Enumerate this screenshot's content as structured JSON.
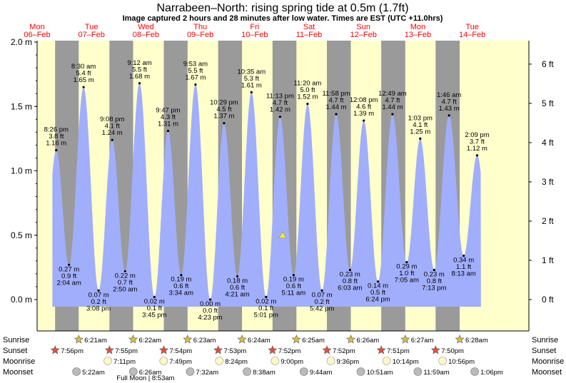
{
  "title": "Narrabeen–North: rising  spring tide at 0.5m (1.7ft)",
  "subtitle": "Image captured 2 hours and 28 minutes after low water. Times are EST (UTC +11.0hrs)",
  "days": [
    {
      "dow": "Mon",
      "date": "06–Feb"
    },
    {
      "dow": "Tue",
      "date": "07–Feb"
    },
    {
      "dow": "Wed",
      "date": "08–Feb"
    },
    {
      "dow": "Thu",
      "date": "09–Feb"
    },
    {
      "dow": "Fri",
      "date": "10–Feb"
    },
    {
      "dow": "Sat",
      "date": "11–Feb"
    },
    {
      "dow": "Sun",
      "date": "12–Feb"
    },
    {
      "dow": "Mon",
      "date": "13–Feb"
    },
    {
      "dow": "Tue",
      "date": "14–Feb"
    }
  ],
  "colors": {
    "day": "#ffffcc",
    "night": "#9a9a9a",
    "water": "#a1aefc",
    "dayLabel": "#ff0000",
    "marker": "#eeee33"
  },
  "chart_data": {
    "type": "area",
    "ylabel_left_unit": "m",
    "ylabel_right_unit": "ft",
    "ylim_m": [
      -0.07,
      2.0
    ],
    "left_ticks": [
      "2.0 m",
      "1.5 m",
      "1.0 m",
      "0.5 m",
      "0.0 m"
    ],
    "right_ticks": [
      "6 ft",
      "5 ft",
      "4 ft",
      "3 ft",
      "2 ft",
      "1 ft",
      "0 ft"
    ],
    "current_level_m": 0.5,
    "series": [
      {
        "extrema": [
          {
            "type": "high",
            "time": "8:26 pm",
            "day": 0,
            "ft": "3.8 ft",
            "m": 1.16
          },
          {
            "type": "low",
            "time": "2:04 am",
            "day": 1,
            "ft": "0.9 ft",
            "m": 0.27
          },
          {
            "type": "high",
            "time": "8:30 am",
            "day": 1,
            "ft": "5.4 ft",
            "m": 1.65
          },
          {
            "type": "low",
            "time": "3:08 pm",
            "day": 1,
            "ft": "0.2 ft",
            "m": 0.07
          },
          {
            "type": "high",
            "time": "9:08 pm",
            "day": 1,
            "ft": "4.1 ft",
            "m": 1.24
          },
          {
            "type": "low",
            "time": "2:50 am",
            "day": 2,
            "ft": "0.7 ft",
            "m": 0.22
          },
          {
            "type": "high",
            "time": "9:12 am",
            "day": 2,
            "ft": "5.5 ft",
            "m": 1.68
          },
          {
            "type": "low",
            "time": "3:45 pm",
            "day": 2,
            "ft": "0.1 ft",
            "m": 0.02
          },
          {
            "type": "high",
            "time": "9:47 pm",
            "day": 2,
            "ft": "4.3 ft",
            "m": 1.31
          },
          {
            "type": "low",
            "time": "3:34 am",
            "day": 3,
            "ft": "0.6 ft",
            "m": 0.19
          },
          {
            "type": "high",
            "time": "9:53 am",
            "day": 3,
            "ft": "5.5 ft",
            "m": 1.67
          },
          {
            "type": "low",
            "time": "4:23 pm",
            "day": 3,
            "ft": "0.0 ft",
            "m": 0.0
          },
          {
            "type": "high",
            "time": "10:29 pm",
            "day": 3,
            "ft": "4.5 ft",
            "m": 1.37
          },
          {
            "type": "low",
            "time": "4:21 am",
            "day": 4,
            "ft": "0.6 ft",
            "m": 0.18
          },
          {
            "type": "high",
            "time": "10:35 am",
            "day": 4,
            "ft": "5.3 ft",
            "m": 1.61
          },
          {
            "type": "low",
            "time": "5:01 pm",
            "day": 4,
            "ft": "0.1 ft",
            "m": 0.02
          },
          {
            "type": "high",
            "time": "11:13 pm",
            "day": 4,
            "ft": "4.7 ft",
            "m": 1.42
          },
          {
            "type": "low",
            "time": "5:11 am",
            "day": 5,
            "ft": "0.6 ft",
            "m": 0.19
          },
          {
            "type": "high",
            "time": "11:20 am",
            "day": 5,
            "ft": "5.0 ft",
            "m": 1.52
          },
          {
            "type": "low",
            "time": "5:42 pm",
            "day": 5,
            "ft": "0.2 ft",
            "m": 0.07
          },
          {
            "type": "high",
            "time": "11:58 pm",
            "day": 5,
            "ft": "4.7 ft",
            "m": 1.44
          },
          {
            "type": "low",
            "time": "6:03 am",
            "day": 6,
            "ft": "0.8 ft",
            "m": 0.23
          },
          {
            "type": "high",
            "time": "12:08 pm",
            "day": 6,
            "ft": "4.6 ft",
            "m": 1.39
          },
          {
            "type": "low",
            "time": "6:24 pm",
            "day": 6,
            "ft": "0.5 ft",
            "m": 0.14
          },
          {
            "type": "high",
            "time": "12:49 am",
            "day": 7,
            "ft": "4.7 ft",
            "m": 1.44
          },
          {
            "type": "low",
            "time": "7:05 am",
            "day": 7,
            "ft": "1.0 ft",
            "m": 0.29
          },
          {
            "type": "high",
            "time": "1:03 pm",
            "day": 7,
            "ft": "4.1 ft",
            "m": 1.25
          },
          {
            "type": "low",
            "time": "7:13 pm",
            "day": 7,
            "ft": "0.8 ft",
            "m": 0.23
          },
          {
            "type": "high",
            "time": "1:46 am",
            "day": 8,
            "ft": "4.7 ft",
            "m": 1.43
          },
          {
            "type": "low",
            "time": "8:13 am",
            "day": 8,
            "ft": "1.1 ft",
            "m": 0.34
          },
          {
            "type": "high",
            "time": "2:09 pm",
            "day": 8,
            "ft": "3.7 ft",
            "m": 1.12
          }
        ]
      }
    ]
  },
  "nights": [
    {
      "sunset": "7:56pm",
      "sunset_day": 0,
      "sunrise": "6:21am",
      "sunrise_day": 1
    },
    {
      "sunset": "7:55pm",
      "sunset_day": 1,
      "sunrise": "6:22am",
      "sunrise_day": 2
    },
    {
      "sunset": "7:54pm",
      "sunset_day": 2,
      "sunrise": "6:23am",
      "sunrise_day": 3
    },
    {
      "sunset": "7:53pm",
      "sunset_day": 3,
      "sunrise": "6:24am",
      "sunrise_day": 4
    },
    {
      "sunset": "7:52pm",
      "sunset_day": 4,
      "sunrise": "6:25am",
      "sunrise_day": 5
    },
    {
      "sunset": "7:52pm",
      "sunset_day": 5,
      "sunrise": "6:26am",
      "sunrise_day": 6
    },
    {
      "sunset": "7:51pm",
      "sunset_day": 6,
      "sunrise": "6:27am",
      "sunrise_day": 7
    },
    {
      "sunset": "7:50pm",
      "sunset_day": 7,
      "sunrise": "6:28am",
      "sunrise_day": 8
    }
  ],
  "rows": {
    "sunrise": "Sunrise",
    "sunset": "Sunset",
    "moonrise": "Moonrise",
    "moonset": "Moonset"
  },
  "moonrise": [
    {
      "time": "7:11pm",
      "day": 1
    },
    {
      "time": "7:49pm",
      "day": 2
    },
    {
      "time": "8:24pm",
      "day": 3
    },
    {
      "time": "9:00pm",
      "day": 4
    },
    {
      "time": "9:36pm",
      "day": 5
    },
    {
      "time": "10:14pm",
      "day": 6
    },
    {
      "time": "10:56pm",
      "day": 7
    }
  ],
  "moonset": [
    {
      "time": "5:22am",
      "day": 1
    },
    {
      "time": "6:26am",
      "day": 2
    },
    {
      "time": "7:32am",
      "day": 3
    },
    {
      "time": "8:38am",
      "day": 4
    },
    {
      "time": "9:44am",
      "day": 5
    },
    {
      "time": "10:51am",
      "day": 6
    },
    {
      "time": "11:59am",
      "day": 7
    },
    {
      "time": "1:06pm",
      "day": 8
    }
  ],
  "full_moon_note": "Full Moon | 8:53am"
}
